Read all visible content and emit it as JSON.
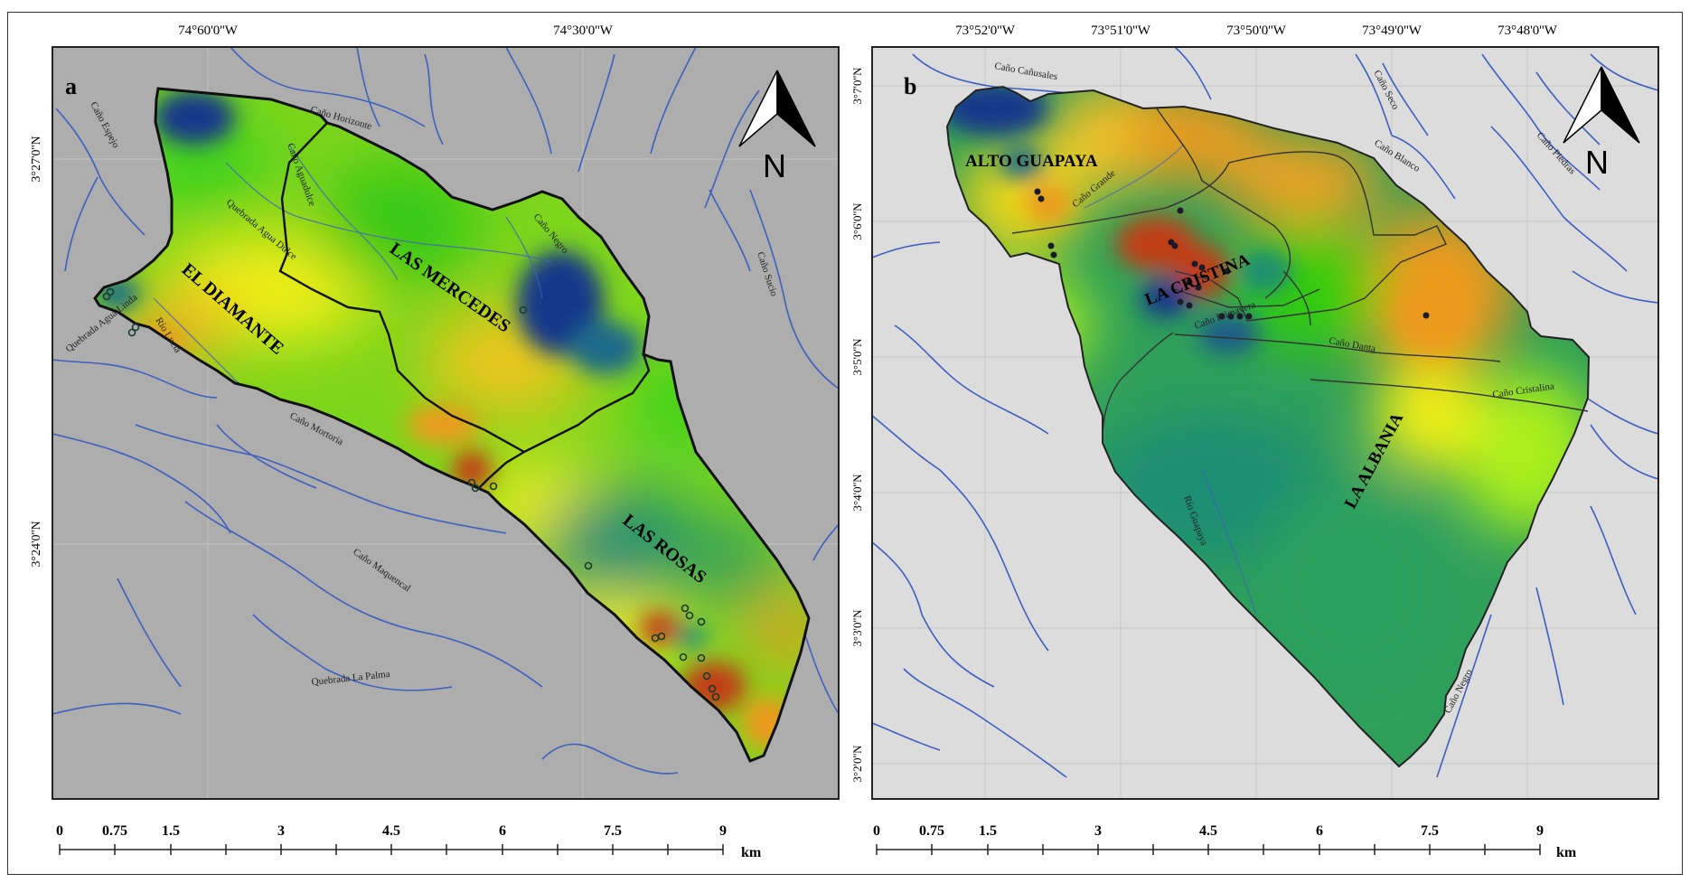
{
  "panel_a": {
    "letter": "a",
    "lon_labels": [
      "74°60'0''W",
      "74°30'0''W"
    ],
    "lat_labels": [
      "3°27'0''N",
      "3°24'0''N"
    ],
    "zones": [
      "EL DIAMANTE",
      "LAS MERCEDES",
      "LAS ROSAS"
    ],
    "rivers": [
      "Caño Espejo",
      "Caño Horizonte",
      "Caño Aguadulce",
      "Quebrada Agua Dulce",
      "Caño Negro",
      "Caño Sucio",
      "Quebrada Agua Linda",
      "Río Lucia",
      "Caño Mortoria",
      "Caño Maquencal",
      "Quebrada La Palma"
    ],
    "north": "N",
    "scale": {
      "ticks": [
        "0",
        "0.75",
        "1.5",
        "3",
        "4.5",
        "6",
        "7.5",
        "9"
      ],
      "unit": "km"
    }
  },
  "panel_b": {
    "letter": "b",
    "lon_labels": [
      "73°52'0''W",
      "73°51'0''W",
      "73°50'0''W",
      "73°49'0''W",
      "73°48'0''W"
    ],
    "lat_labels": [
      "3°7'0''N",
      "3°6'0''N",
      "3°5'0''N",
      "3°4'0''N",
      "3°3'0''N",
      "3°2'0''N"
    ],
    "zones": [
      "ALTO GUAPAYA",
      "LA CRISTINA",
      "LA ALBANIA"
    ],
    "rivers": [
      "Caño Cañusales",
      "Caño Seco",
      "Caño Blanco",
      "Caño Piedras",
      "Caño Grande",
      "Caño Primavera",
      "Caño Danta",
      "Caño Cristalina",
      "Río Guapaya",
      "Caño Negro"
    ],
    "north": "N",
    "scale": {
      "ticks": [
        "0",
        "0.75",
        "1.5",
        "3",
        "4.5",
        "6",
        "7.5",
        "9"
      ],
      "unit": "km"
    }
  },
  "colors": {
    "bg_a": "#adadad",
    "bg_b": "#dcdcdc",
    "river": "#3f5fc0",
    "blue": "#14378a",
    "teal": "#1e8e73",
    "green": "#33cc10",
    "lime": "#a9ef1e",
    "yellow": "#f2ef18",
    "orange": "#ec9a1c",
    "red": "#c23d16"
  }
}
